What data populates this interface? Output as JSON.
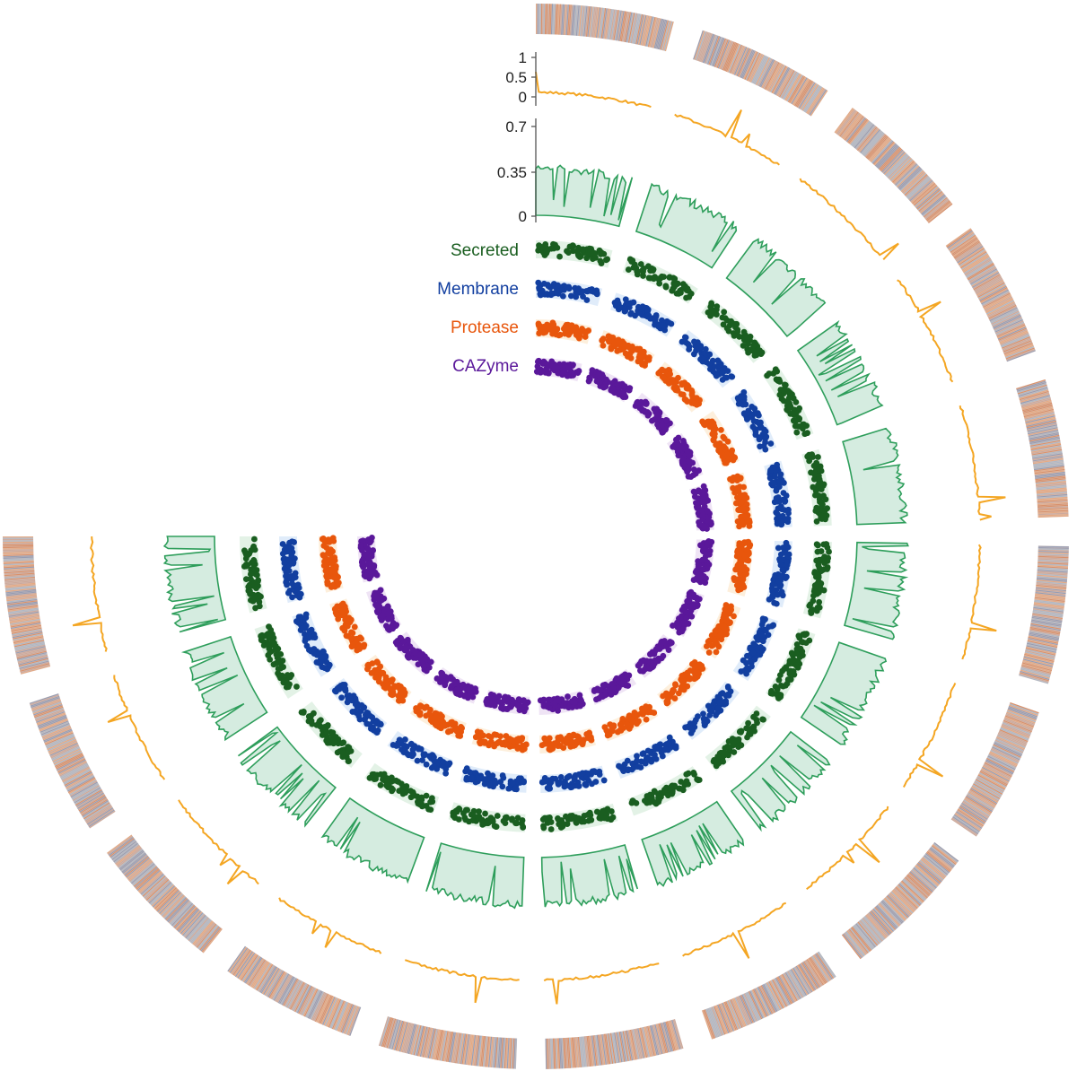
{
  "chart_data": {
    "type": "circos",
    "title": "",
    "layout": {
      "arc_start_deg": 0,
      "arc_end_deg": 270,
      "direction": "clockwise",
      "scaffold_count": 15
    },
    "tracks": [
      {
        "id": "heatmap",
        "type": "heatmap",
        "colors": [
          "#e8a070",
          "#a0b4c8",
          "#c8a090",
          "#d88050",
          "#8090b0"
        ]
      },
      {
        "id": "orange",
        "type": "line",
        "color": "#f4a623",
        "ticks": [
          "1",
          "0.5",
          "0"
        ],
        "ylim": [
          0,
          1
        ]
      },
      {
        "id": "green",
        "type": "area",
        "color": "#2e9e5b",
        "fill": "#d5ece0",
        "ticks": [
          "0.7",
          "0.35",
          "0"
        ],
        "ylim": [
          0,
          0.7
        ]
      },
      {
        "id": "secreted",
        "type": "scatter",
        "label": "Secreted",
        "color": "#1a5e20",
        "band": "#e3f2e6"
      },
      {
        "id": "membrane",
        "type": "scatter",
        "label": "Membrane",
        "color": "#123fa0",
        "band": "#e0ecfa"
      },
      {
        "id": "protease",
        "type": "scatter",
        "label": "Protease",
        "color": "#e8560c",
        "band": "#fdefdc"
      },
      {
        "id": "cazyme",
        "type": "scatter",
        "label": "CAZyme",
        "color": "#5a189a",
        "band": "#efe4f5"
      }
    ]
  }
}
